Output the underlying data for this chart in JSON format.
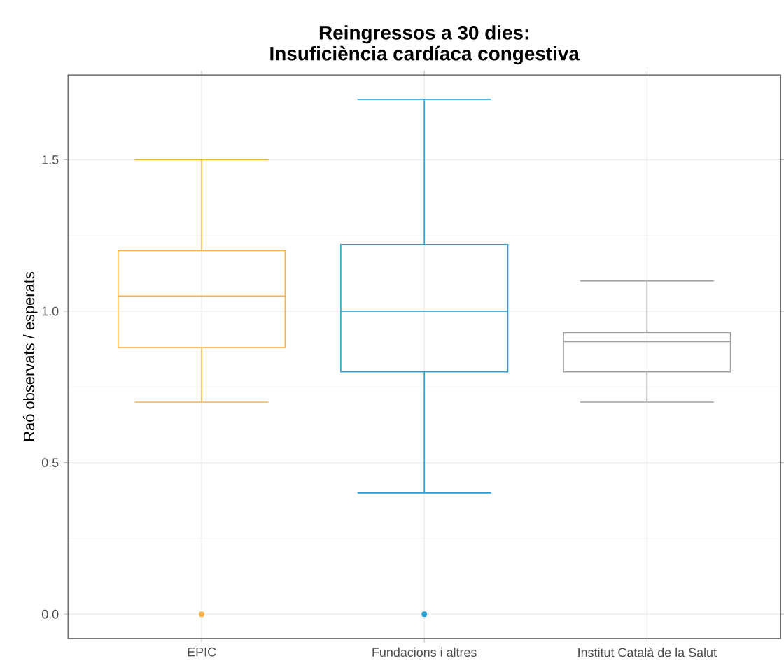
{
  "chart_data": {
    "type": "box",
    "title": "Reingressos a 30 dies:",
    "subtitle": "Insuficiència cardíaca congestiva",
    "ylabel": "Raó observats / esperats",
    "categories": [
      "EPIC",
      "Fundacions i altres",
      "Institut Català de la Salut"
    ],
    "colors": [
      "#f9b24a",
      "#2a9fd0",
      "#a0a0a0"
    ],
    "boxes": [
      {
        "low": 0.7,
        "q1": 0.88,
        "median": 1.05,
        "q3": 1.2,
        "high": 1.5,
        "outliers": [
          0
        ]
      },
      {
        "low": 0.4,
        "q1": 0.8,
        "median": 1.0,
        "q3": 1.22,
        "high": 1.7,
        "outliers": [
          0
        ]
      },
      {
        "low": 0.7,
        "q1": 0.8,
        "median": 0.9,
        "q3": 0.93,
        "high": 1.1
      }
    ],
    "ylim": [
      -0.08,
      1.78
    ],
    "yticks": [
      {
        "value": 0,
        "label": "0.0"
      },
      0.5,
      {
        "value": 1,
        "label": "1.0"
      },
      1.5
    ],
    "grid": true
  }
}
